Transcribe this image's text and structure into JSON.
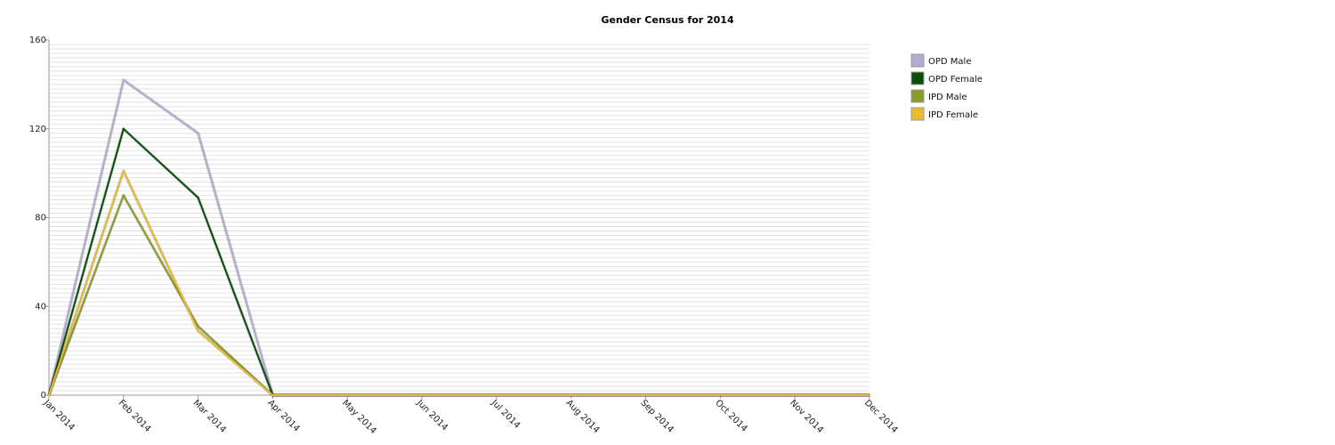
{
  "chart_data": {
    "type": "line",
    "title": "Gender Census for 2014",
    "xlabel": "",
    "ylabel": "",
    "categories": [
      "Jan 2014",
      "Feb 2014",
      "Mar 2014",
      "Apr 2014",
      "May 2014",
      "Jun 2014",
      "Jul 2014",
      "Aug 2014",
      "Sep 2014",
      "Oct 2014",
      "Nov 2014",
      "Dec 2014"
    ],
    "ylim": [
      0,
      160
    ],
    "yticks": [
      "0",
      "40",
      "80",
      "120",
      "160"
    ],
    "grid": true,
    "legend_position": "right",
    "series": [
      {
        "name": "OPD Male",
        "color": "#b0aed0",
        "values": [
          0,
          142,
          118,
          0,
          0,
          0,
          0,
          0,
          0,
          0,
          0,
          0
        ]
      },
      {
        "name": "OPD Female",
        "color": "#0b4e0b",
        "values": [
          0,
          120,
          89,
          0,
          0,
          0,
          0,
          0,
          0,
          0,
          0,
          0
        ]
      },
      {
        "name": "IPD Male",
        "color": "#8a9b2a",
        "values": [
          0,
          90,
          31,
          0,
          0,
          0,
          0,
          0,
          0,
          0,
          0,
          0
        ]
      },
      {
        "name": "IPD Female",
        "color": "#e8bb33",
        "values": [
          0,
          101,
          29,
          0,
          0,
          0,
          0,
          0,
          0,
          0,
          0,
          0
        ]
      }
    ]
  }
}
